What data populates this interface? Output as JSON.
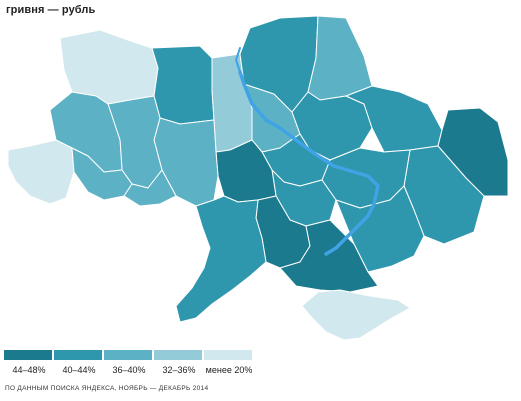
{
  "header": {
    "title": "гривня — рубль"
  },
  "legend": {
    "items": [
      {
        "label": "44–48%",
        "color": "#1b7a8e"
      },
      {
        "label": "40–44%",
        "color": "#2f97ad"
      },
      {
        "label": "36–40%",
        "color": "#5db1c4"
      },
      {
        "label": "32–36%",
        "color": "#93cbd8"
      },
      {
        "label": "менее 20%",
        "color": "#d2e8ef"
      }
    ]
  },
  "source": "ПО ДАННЫМ ПОИСКА ЯНДЕКСА, НОЯБРЬ — ДЕКАБРЬ 2014",
  "map": {
    "regions": [
      {
        "name": "Volyn",
        "band": "менее 20%"
      },
      {
        "name": "Rivne",
        "band": "36–40%"
      },
      {
        "name": "Zhytomyr",
        "band": "40–44%"
      },
      {
        "name": "Kyiv",
        "band": "36–40%"
      },
      {
        "name": "Chernihiv",
        "band": "40–44%"
      },
      {
        "name": "Sumy",
        "band": "36–40%"
      },
      {
        "name": "Kharkiv",
        "band": "40–44%"
      },
      {
        "name": "Luhansk",
        "band": "44–48%"
      },
      {
        "name": "Donetsk",
        "band": "40–44%"
      },
      {
        "name": "Zaporizhzhia",
        "band": "40–44%"
      },
      {
        "name": "Dnipropetrovsk",
        "band": "40–44%"
      },
      {
        "name": "Poltava",
        "band": "40–44%"
      },
      {
        "name": "Cherkasy",
        "band": "40–44%"
      },
      {
        "name": "Kirovohrad",
        "band": "40–44%"
      },
      {
        "name": "Vinnytsia",
        "band": "44–48%"
      },
      {
        "name": "Khmelnytskyi",
        "band": "36–40%"
      },
      {
        "name": "Ternopil",
        "band": "36–40%"
      },
      {
        "name": "Lviv",
        "band": "36–40%"
      },
      {
        "name": "Zakarpattia",
        "band": "менее 20%"
      },
      {
        "name": "Ivano-Frankivsk",
        "band": "36–40%"
      },
      {
        "name": "Chernivtsi",
        "band": "36–40%"
      },
      {
        "name": "Mykolaiv",
        "band": "44–48%"
      },
      {
        "name": "Odesa",
        "band": "40–44%"
      },
      {
        "name": "Kherson",
        "band": "44–48%"
      },
      {
        "name": "Crimea",
        "band": "менее 20%"
      }
    ]
  }
}
